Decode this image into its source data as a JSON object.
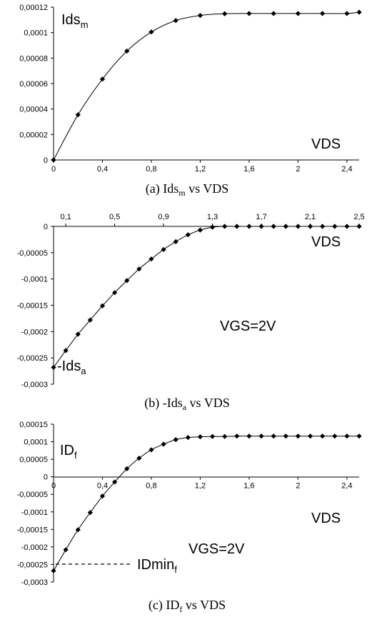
{
  "chart_data": [
    {
      "type": "line",
      "caption": {
        "prefix": "(a) Ids",
        "sub": "m",
        "suffix": " vs VDS"
      },
      "series_label": {
        "main": "Ids",
        "sub": "m"
      },
      "axis_label": "VDS",
      "xlim": [
        0,
        2.5
      ],
      "ylim": [
        0,
        0.00012
      ],
      "x_ticks": [
        "0",
        "0,4",
        "0,8",
        "1,2",
        "1,6",
        "2",
        "2,4"
      ],
      "x_tick_values": [
        0,
        0.4,
        0.8,
        1.2,
        1.6,
        2.0,
        2.4
      ],
      "y_ticks": [
        "0",
        "0,00002",
        "0,00004",
        "0,00006",
        "0,00008",
        "0,0001",
        "0,00012"
      ],
      "y_tick_values": [
        0,
        2e-05,
        4e-05,
        6e-05,
        8e-05,
        0.0001,
        0.00012
      ],
      "x": [
        0,
        0.2,
        0.4,
        0.6,
        0.8,
        1.0,
        1.2,
        1.4,
        1.6,
        1.8,
        2.0,
        2.2,
        2.4,
        2.5
      ],
      "y": [
        0,
        3.55e-05,
        6.35e-05,
        8.55e-05,
        0.0001005,
        0.0001095,
        0.0001135,
        0.0001148,
        0.000115,
        0.000115,
        0.000115,
        0.000115,
        0.000115,
        0.000116
      ]
    },
    {
      "type": "line",
      "caption": {
        "prefix": "(b) -Ids",
        "sub": "a",
        "suffix": " vs VDS"
      },
      "series_label": {
        "main": "-Ids",
        "sub": "a"
      },
      "axis_label": "VDS",
      "annotation": "VGS=2V",
      "xlim": [
        0,
        2.5
      ],
      "ylim": [
        -0.0003,
        0
      ],
      "x_ticks": [
        "0,1",
        "0,5",
        "0,9",
        "1,3",
        "1,7",
        "2,1",
        "2,5"
      ],
      "x_tick_values": [
        0.1,
        0.5,
        0.9,
        1.3,
        1.7,
        2.1,
        2.5
      ],
      "y_ticks": [
        "0",
        "-0,00005",
        "-0,0001",
        "-0,00015",
        "-0,0002",
        "-0,00025",
        "-0,0003"
      ],
      "y_tick_values": [
        0,
        -5e-05,
        -0.0001,
        -0.00015,
        -0.0002,
        -0.00025,
        -0.0003
      ],
      "x": [
        0,
        0.1,
        0.2,
        0.3,
        0.4,
        0.5,
        0.6,
        0.7,
        0.8,
        0.9,
        1.0,
        1.1,
        1.2,
        1.3,
        1.4,
        1.5,
        1.6,
        1.7,
        1.8,
        1.9,
        2.0,
        2.1,
        2.2,
        2.3,
        2.4,
        2.5
      ],
      "y": [
        -0.000268,
        -0.000236,
        -0.000205,
        -0.000178,
        -0.000151,
        -0.000126,
        -0.000103,
        -8.1e-05,
        -6.2e-05,
        -4.4e-05,
        -2.9e-05,
        -1.6e-05,
        -7e-06,
        -1.5e-06,
        0,
        0,
        0,
        0,
        0,
        0,
        0,
        0,
        0,
        0,
        0,
        0
      ]
    },
    {
      "type": "line",
      "caption": {
        "prefix": "(c) ID",
        "sub": "f",
        "suffix": " vs VDS"
      },
      "series_label": {
        "main": "ID",
        "sub": "f"
      },
      "axis_label": "VDS",
      "annotation": "VGS=2V",
      "min_label": {
        "main": "IDmin",
        "sub": "f"
      },
      "xlim": [
        0,
        2.5
      ],
      "ylim": [
        -0.0003,
        0.00015
      ],
      "x_ticks": [
        "0",
        "0,4",
        "0,8",
        "1,2",
        "1,6",
        "2",
        "2,4"
      ],
      "x_tick_values": [
        0,
        0.4,
        0.8,
        1.2,
        1.6,
        2.0,
        2.4
      ],
      "y_ticks": [
        "0,00015",
        "0,0001",
        "0,00005",
        "0",
        "-0,00005",
        "-0,0001",
        "-0,00015",
        "-0,0002",
        "-0,00025",
        "-0,0003"
      ],
      "y_tick_values": [
        0.00015,
        0.0001,
        5e-05,
        0,
        -5e-05,
        -0.0001,
        -0.00015,
        -0.0002,
        -0.00025,
        -0.0003
      ],
      "x": [
        0,
        0.1,
        0.2,
        0.3,
        0.4,
        0.5,
        0.6,
        0.7,
        0.8,
        0.9,
        1.0,
        1.1,
        1.2,
        1.3,
        1.4,
        1.5,
        1.6,
        1.7,
        1.8,
        1.9,
        2.0,
        2.1,
        2.2,
        2.3,
        2.4,
        2.5
      ],
      "y": [
        -0.000268,
        -0.000208,
        -0.000151,
        -0.000102,
        -5.5e-05,
        -1.5e-05,
        2.3e-05,
        5.3e-05,
        7.7e-05,
        9.3e-05,
        0.000106,
        0.000112,
        0.000114,
        0.000115,
        0.000115,
        0.000116,
        0.000116,
        0.000116,
        0.000116,
        0.000116,
        0.000116,
        0.000116,
        0.000116,
        0.000116,
        0.000116,
        0.000116
      ]
    }
  ]
}
